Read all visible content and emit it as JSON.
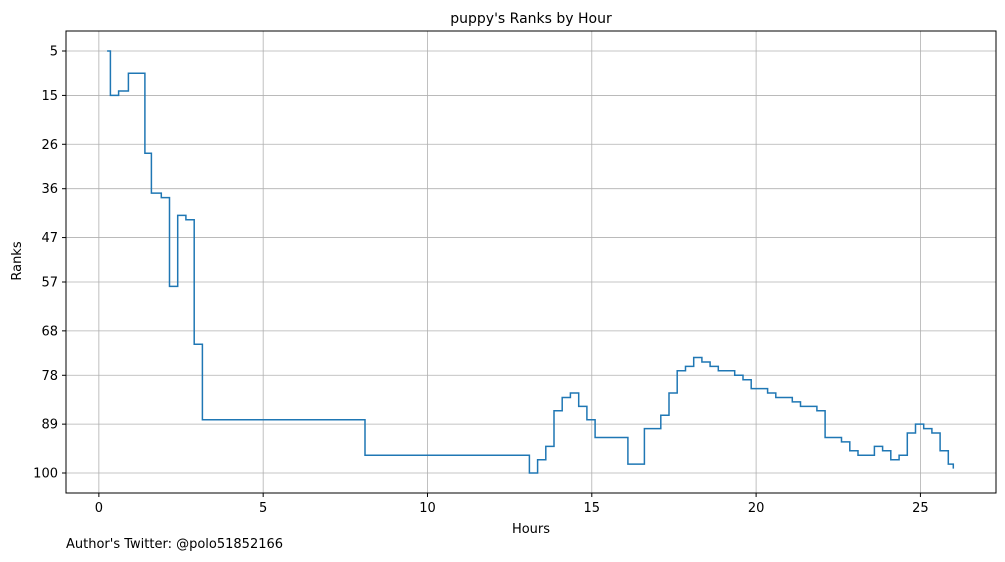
{
  "chart_data": {
    "type": "line",
    "step": "post",
    "title": "puppy's Ranks by Hour",
    "xlabel": "Hours",
    "ylabel": "Ranks",
    "xlim": [
      -1,
      27.3
    ],
    "ylim": [
      104.5,
      0.5
    ],
    "y_inverted": true,
    "grid": true,
    "xticks": [
      0,
      5,
      10,
      15,
      20,
      25
    ],
    "yticks": [
      5,
      15,
      26,
      36,
      47,
      57,
      68,
      78,
      89,
      100
    ],
    "line_color": "#1f77b4",
    "x": [
      0.25,
      0.35,
      0.6,
      0.9,
      1.4,
      1.6,
      1.9,
      2.15,
      2.4,
      2.65,
      2.9,
      3.15,
      8.0,
      8.1,
      12.9,
      13.1,
      13.35,
      13.6,
      13.85,
      14.1,
      14.35,
      14.6,
      14.85,
      15.1,
      16.1,
      16.35,
      16.6,
      17.1,
      17.35,
      17.6,
      17.85,
      18.1,
      18.35,
      18.6,
      18.85,
      19.35,
      19.6,
      19.85,
      20.35,
      20.6,
      21.1,
      21.35,
      21.85,
      22.1,
      22.6,
      22.85,
      23.1,
      23.6,
      23.85,
      24.1,
      24.35,
      24.6,
      24.85,
      25.1,
      25.35,
      25.6,
      25.85,
      26.0
    ],
    "y": [
      5,
      15,
      14,
      10,
      28,
      37,
      38,
      58,
      42,
      43,
      71,
      88,
      88,
      96,
      96,
      100,
      97,
      94,
      86,
      83,
      82,
      85,
      88,
      92,
      98,
      98,
      90,
      87,
      82,
      77,
      76,
      74,
      75,
      76,
      77,
      78,
      79,
      81,
      82,
      83,
      84,
      85,
      86,
      92,
      93,
      95,
      96,
      94,
      95,
      97,
      96,
      91,
      89,
      90,
      91,
      95,
      98,
      99
    ]
  },
  "footer": {
    "author": "Author's Twitter: @polo51852166"
  }
}
